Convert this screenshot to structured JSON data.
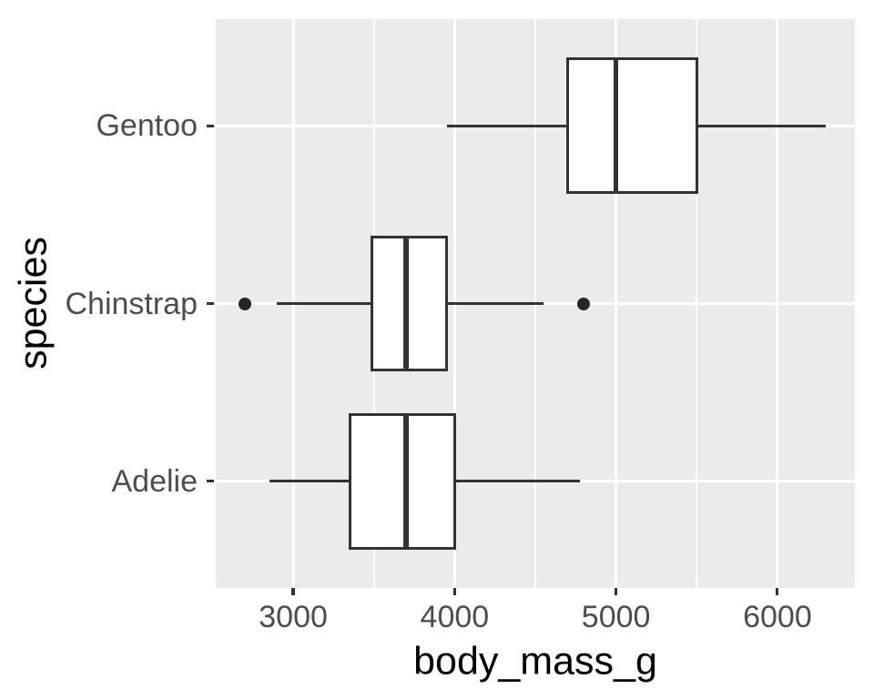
{
  "chart_data": {
    "type": "boxplot",
    "orientation": "horizontal",
    "title": "",
    "xlabel": "body_mass_g",
    "ylabel": "species",
    "xlim": [
      2520,
      6480
    ],
    "x_major_ticks": [
      3000,
      4000,
      5000,
      6000
    ],
    "x_tick_labels": [
      "3000",
      "4000",
      "5000",
      "6000"
    ],
    "x_minor_ticks": [
      3500,
      4500,
      5500
    ],
    "y_units_range": [
      0.4,
      3.6
    ],
    "box_width_units": 0.75,
    "grid": true,
    "legend": false,
    "categories": [
      {
        "label": "Gentoo",
        "position": 3,
        "stats": {
          "whisker_low": 3950,
          "q1": 4700,
          "median": 5000,
          "q3": 5500,
          "whisker_high": 6300
        },
        "outliers": []
      },
      {
        "label": "Chinstrap",
        "position": 2,
        "stats": {
          "whisker_low": 2900,
          "q1": 3487.5,
          "median": 3700,
          "q3": 3950,
          "whisker_high": 4550
        },
        "outliers": [
          2700,
          4800
        ]
      },
      {
        "label": "Adelie",
        "position": 1,
        "stats": {
          "whisker_low": 2850,
          "q1": 3350,
          "median": 3700,
          "q3": 4000,
          "whisker_high": 4775
        },
        "outliers": []
      }
    ],
    "colors": {
      "background": "#FFFFFF",
      "panel_bg": "#EBEBEB",
      "grid": "#FFFFFF",
      "box_stroke": "#333333",
      "box_fill": "#FFFFFF",
      "median": "#333333",
      "whisker": "#333333",
      "outlier": "#262626",
      "tick_mark": "#333333",
      "tick_label": "#4D4D4D",
      "axis_title": "#000000"
    }
  }
}
